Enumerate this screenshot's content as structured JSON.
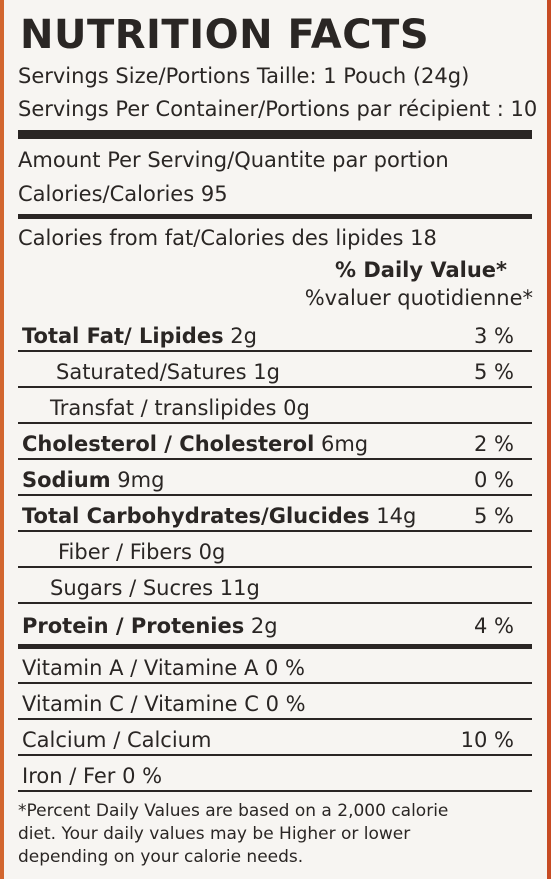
{
  "title": "NUTRITION FACTS",
  "serving_size": "Servings Size/Portions Taille: 1 Pouch (24g)",
  "servings_per_container": "Servings Per Container/Portions par récipient : 10",
  "amount_per_serving": "Amount Per Serving/Quantite par portion",
  "calories": "Calories/Calories  95",
  "calories_from_fat": "Calories from fat/Calories des lipides 18",
  "daily_value_header": "% Daily Value*",
  "daily_value_header_fr": "%valuer quotidienne*",
  "nutrients": [
    {
      "name": "Total Fat/ Lipides",
      "amount": " 2g",
      "pct": "3 %"
    },
    {
      "name": "Saturated/Satures 1g",
      "amount": "",
      "pct": "5 %"
    },
    {
      "name": "Transfat / translipides 0g",
      "amount": "",
      "pct": ""
    },
    {
      "name": "Cholesterol / Cholesterol",
      "amount": " 6mg",
      "pct": "2 %"
    },
    {
      "name": "Sodium",
      "amount": " 9mg",
      "pct": "0 %"
    },
    {
      "name": "Total Carbohydrates/Glucides",
      "amount": " 14g",
      "pct": "5 %"
    },
    {
      "name": "Fiber / Fibers 0g",
      "amount": "",
      "pct": ""
    },
    {
      "name": "Sugars / Sucres 11g",
      "amount": "",
      "pct": ""
    },
    {
      "name": "Protein / Protenies",
      "amount": " 2g",
      "pct": "4 %"
    }
  ],
  "vitamins": [
    {
      "name": "Vitamin A / Vitamine A 0 %",
      "pct": ""
    },
    {
      "name": "Vitamin C / Vitamine C 0 %",
      "pct": ""
    },
    {
      "name": "Calcium / Calcium",
      "pct": "10 %"
    },
    {
      "name": "Iron / Fer 0 %",
      "pct": ""
    }
  ],
  "footnote": [
    "*Percent Daily Values are based on a 2,000 calorie",
    "diet. Your daily values may be Higher or lower",
    "depending on your calorie needs."
  ]
}
